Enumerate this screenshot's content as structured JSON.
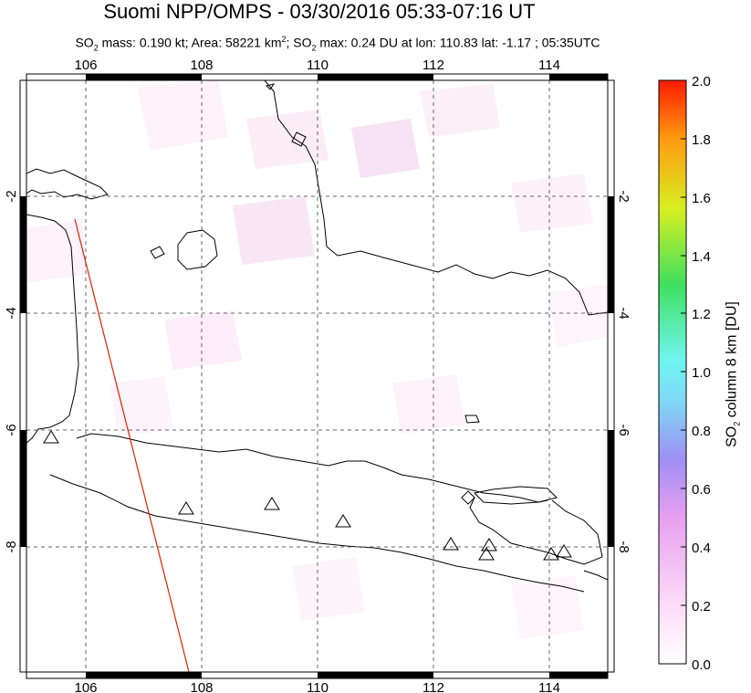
{
  "title": "Suomi NPP/OMPS - 03/30/2016 05:33-07:16 UT",
  "subtitle": {
    "p1": "SO",
    "p1_sub": "2",
    "p2": " mass: 0.190 kt; Area: 58221 km",
    "p2_sup": "2",
    "p3": "; SO",
    "p3_sub": "2",
    "p4": " max: 0.24 DU at lon: 110.83 lat: -1.17 ; 05:35UTC"
  },
  "map": {
    "lon_ticks": [
      "106",
      "108",
      "110",
      "112",
      "114"
    ],
    "lat_ticks": [
      "-2",
      "-4",
      "-6",
      "-8"
    ],
    "lat_ticks_right": [
      "-2",
      "-4",
      "-6",
      "-8"
    ]
  },
  "colorbar": {
    "ticks": [
      "2.0",
      "1.8",
      "1.6",
      "1.4",
      "1.2",
      "1.0",
      "0.8",
      "0.6",
      "0.4",
      "0.2",
      "0.0"
    ],
    "label_pre": "SO",
    "label_sub": "2",
    "label_post": " column 8 km [DU]",
    "colors": [
      "#ff0000",
      "#ff7f00",
      "#ffff00",
      "#00ff00",
      "#00ffff",
      "#7f7fff",
      "#ff7fff",
      "#ffffff"
    ]
  },
  "volcano_icon": "triangle-icon"
}
